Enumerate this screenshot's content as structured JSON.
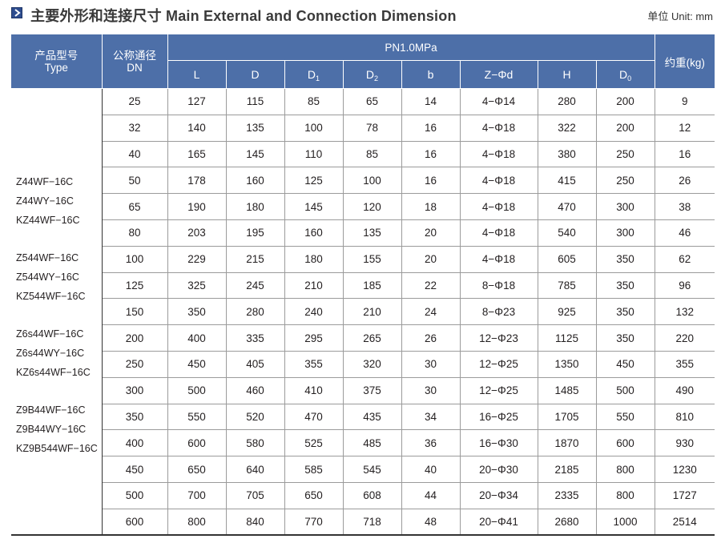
{
  "header": {
    "title": "主要外形和连接尺寸 Main External and Connection Dimension",
    "unit": "单位 Unit: mm",
    "icon": "arrow-right-icon"
  },
  "table": {
    "type_header": {
      "zh": "产品型号",
      "en": "Type"
    },
    "dn_header": {
      "zh": "公称通径",
      "en": "DN"
    },
    "pressure_header": "PN1.0MPa",
    "weight_header": "约重(kg)",
    "columns": [
      {
        "main": "L",
        "sub": ""
      },
      {
        "main": "D",
        "sub": ""
      },
      {
        "main": "D",
        "sub": "1"
      },
      {
        "main": "D",
        "sub": "2"
      },
      {
        "main": "b",
        "sub": ""
      },
      {
        "main": "Z−Φd",
        "sub": ""
      },
      {
        "main": "H",
        "sub": ""
      },
      {
        "main": "D",
        "sub": "0"
      }
    ],
    "types": [
      [
        "Z44WF−16C",
        "Z44WY−16C",
        "KZ44WF−16C"
      ],
      [
        "Z544WF−16C",
        "Z544WY−16C",
        "KZ544WF−16C"
      ],
      [
        "Z6s44WF−16C",
        "Z6s44WY−16C",
        "KZ6s44WF−16C"
      ],
      [
        "Z9B44WF−16C",
        "Z9B44WY−16C",
        "KZ9B544WF−16C"
      ]
    ],
    "rows": [
      [
        "25",
        "127",
        "115",
        "85",
        "65",
        "14",
        "4−Φ14",
        "280",
        "200",
        "9"
      ],
      [
        "32",
        "140",
        "135",
        "100",
        "78",
        "16",
        "4−Φ18",
        "322",
        "200",
        "12"
      ],
      [
        "40",
        "165",
        "145",
        "110",
        "85",
        "16",
        "4−Φ18",
        "380",
        "250",
        "16"
      ],
      [
        "50",
        "178",
        "160",
        "125",
        "100",
        "16",
        "4−Φ18",
        "415",
        "250",
        "26"
      ],
      [
        "65",
        "190",
        "180",
        "145",
        "120",
        "18",
        "4−Φ18",
        "470",
        "300",
        "38"
      ],
      [
        "80",
        "203",
        "195",
        "160",
        "135",
        "20",
        "4−Φ18",
        "540",
        "300",
        "46"
      ],
      [
        "100",
        "229",
        "215",
        "180",
        "155",
        "20",
        "4−Φ18",
        "605",
        "350",
        "62"
      ],
      [
        "125",
        "325",
        "245",
        "210",
        "185",
        "22",
        "8−Φ18",
        "785",
        "350",
        "96"
      ],
      [
        "150",
        "350",
        "280",
        "240",
        "210",
        "24",
        "8−Φ23",
        "925",
        "350",
        "132"
      ],
      [
        "200",
        "400",
        "335",
        "295",
        "265",
        "26",
        "12−Φ23",
        "1125",
        "350",
        "220"
      ],
      [
        "250",
        "450",
        "405",
        "355",
        "320",
        "30",
        "12−Φ25",
        "1350",
        "450",
        "355"
      ],
      [
        "300",
        "500",
        "460",
        "410",
        "375",
        "30",
        "12−Φ25",
        "1485",
        "500",
        "490"
      ],
      [
        "350",
        "550",
        "520",
        "470",
        "435",
        "34",
        "16−Φ25",
        "1705",
        "550",
        "810"
      ],
      [
        "400",
        "600",
        "580",
        "525",
        "485",
        "36",
        "16−Φ30",
        "1870",
        "600",
        "930"
      ],
      [
        "450",
        "650",
        "640",
        "585",
        "545",
        "40",
        "20−Φ30",
        "2185",
        "800",
        "1230"
      ],
      [
        "500",
        "700",
        "705",
        "650",
        "608",
        "44",
        "20−Φ34",
        "2335",
        "800",
        "1727"
      ],
      [
        "600",
        "800",
        "840",
        "770",
        "718",
        "48",
        "20−Φ41",
        "2680",
        "1000",
        "2514"
      ]
    ]
  },
  "colors": {
    "header_bg": "#4d6fa8",
    "icon_bg": "#2e4d8f"
  }
}
